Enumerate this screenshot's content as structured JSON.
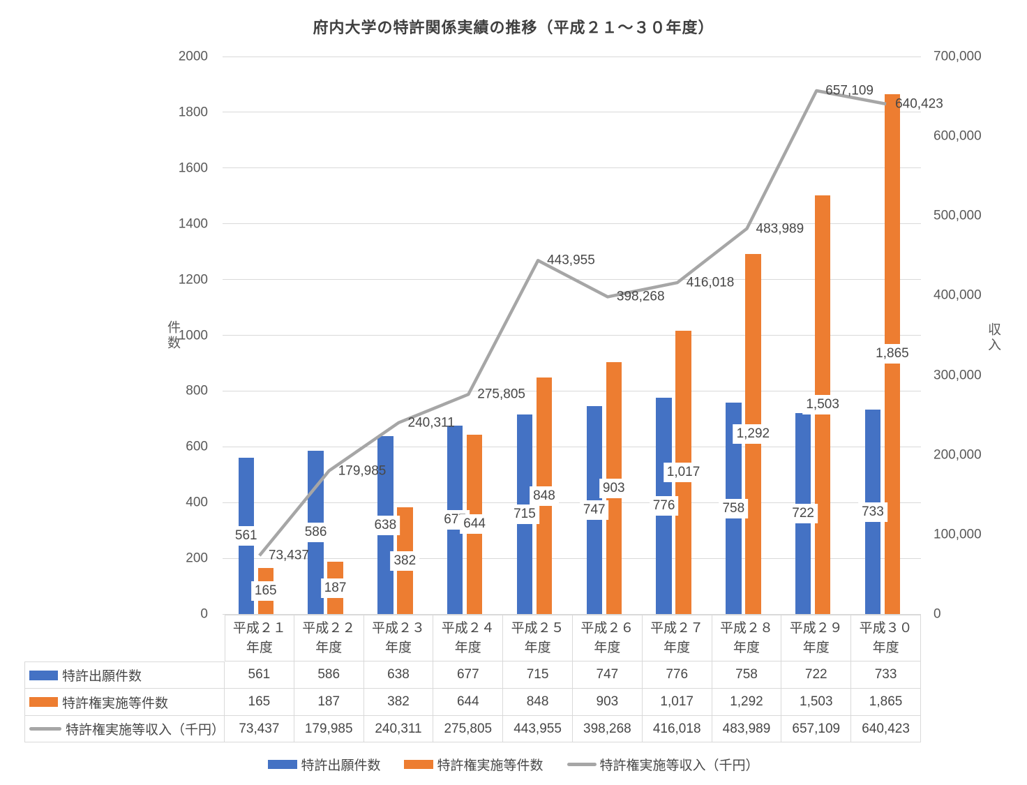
{
  "chart_data": {
    "type": "combo-bar-line",
    "title": "府内大学の特許関係実績の推移（平成２１～３０年度）",
    "categories": [
      "平成２１年度",
      "平成２２年度",
      "平成２３年度",
      "平成２４年度",
      "平成２５年度",
      "平成２６年度",
      "平成２７年度",
      "平成２８年度",
      "平成２９年度",
      "平成３０年度"
    ],
    "series": [
      {
        "key": "patent-applications",
        "name": "特許出願件数",
        "type": "bar",
        "axis": "left",
        "color": "#4472C4",
        "values": [
          561,
          586,
          638,
          677,
          715,
          747,
          776,
          758,
          722,
          733
        ],
        "labels": [
          "561",
          "586",
          "638",
          "677",
          "715",
          "747",
          "776",
          "758",
          "722",
          "733"
        ]
      },
      {
        "key": "patent-implementations",
        "name": "特許権実施等件数",
        "type": "bar",
        "axis": "left",
        "color": "#ED7D31",
        "values": [
          165,
          187,
          382,
          644,
          848,
          903,
          1017,
          1292,
          1503,
          1865
        ],
        "labels": [
          "165",
          "187",
          "382",
          "644",
          "848",
          "903",
          "1,017",
          "1,292",
          "1,503",
          "1,865"
        ]
      },
      {
        "key": "patent-income",
        "name": "特許権実施等収入（千円）",
        "type": "line",
        "axis": "right",
        "color": "#A6A6A6",
        "values": [
          73437,
          179985,
          240311,
          275805,
          443955,
          398268,
          416018,
          483989,
          657109,
          640423
        ],
        "labels": [
          "73,437",
          "179,985",
          "240,311",
          "275,805",
          "443,955",
          "398,268",
          "416,018",
          "483,989",
          "657,109",
          "640,423"
        ]
      }
    ],
    "left_axis": {
      "title": "件数",
      "min": 0,
      "max": 2000,
      "step": 200,
      "ticks": [
        "0",
        "200",
        "400",
        "600",
        "800",
        "1000",
        "1200",
        "1400",
        "1600",
        "1800",
        "2000"
      ]
    },
    "right_axis": {
      "title": "収入",
      "min": 0,
      "max": 700000,
      "step": 100000,
      "ticks": [
        "0",
        "100,000",
        "200,000",
        "300,000",
        "400,000",
        "500,000",
        "600,000",
        "700,000"
      ]
    },
    "grid": "horizontal",
    "legend_position": "bottom"
  },
  "table": {
    "header_suffix": "年度"
  }
}
